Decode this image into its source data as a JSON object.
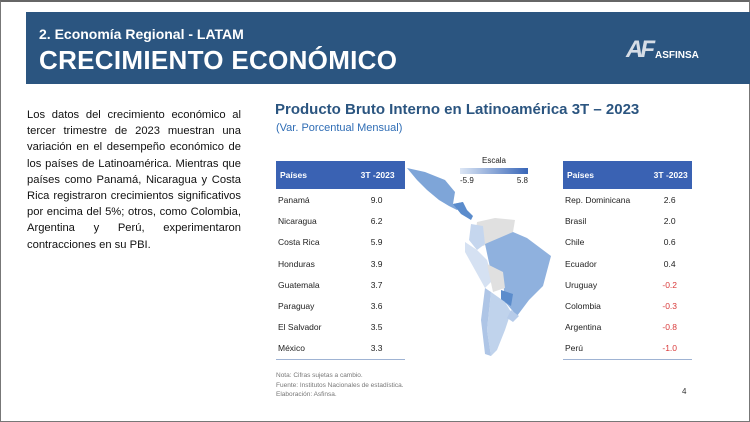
{
  "header": {
    "section": "2. Economía Regional - LATAM",
    "title": "CRECIMIENTO ECONÓMICO",
    "logo_text": "ASFINSA",
    "logo_mark": "AF"
  },
  "paragraph": "Los datos del crecimiento económico al tercer trimestre de 2023 muestran una variación en el desempeño económico de los países de Latinoamérica. Mientras que países como Panamá, Nicaragua y Costa Rica registraron crecimientos significativos por encima del 5%; otros, como Colombia, Argentina y Perú, experimentaron contracciones en su PBI.",
  "chart": {
    "title": "Producto Bruto Interno en Latinoamérica 3T – 2023",
    "subtitle": "(Var. Porcentual Mensual)"
  },
  "legend": {
    "title": "Escala",
    "min": "-5.9",
    "max": "5.8"
  },
  "table_left": {
    "headers": [
      "Países",
      "3T -2023"
    ],
    "rows": [
      [
        "Panamá",
        "9.0"
      ],
      [
        "Nicaragua",
        "6.2"
      ],
      [
        "Costa Rica",
        "5.9"
      ],
      [
        "Honduras",
        "3.9"
      ],
      [
        "Guatemala",
        "3.7"
      ],
      [
        "Paraguay",
        "3.6"
      ],
      [
        "El Salvador",
        "3.5"
      ],
      [
        "México",
        "3.3"
      ]
    ]
  },
  "table_right": {
    "headers": [
      "Países",
      "3T -2023"
    ],
    "rows": [
      [
        "Rep. Dominicana",
        "2.6"
      ],
      [
        "Brasil",
        "2.0"
      ],
      [
        "Chile",
        "0.6"
      ],
      [
        "Ecuador",
        "0.4"
      ],
      [
        "Uruguay",
        "-0.2"
      ],
      [
        "Colombia",
        "-0.3"
      ],
      [
        "Argentina",
        "-0.8"
      ],
      [
        "Perú",
        "-1.0"
      ]
    ]
  },
  "notes": [
    "Nota: Cifras sujetas a cambio.",
    "Fuente: Institutos Nacionales de estadística.",
    "Elaboración: Asfinsa."
  ],
  "page_number": "4",
  "colors": {
    "header": "#2b5580",
    "table_header": "#3a62b3",
    "negative": "#d93a3a"
  }
}
